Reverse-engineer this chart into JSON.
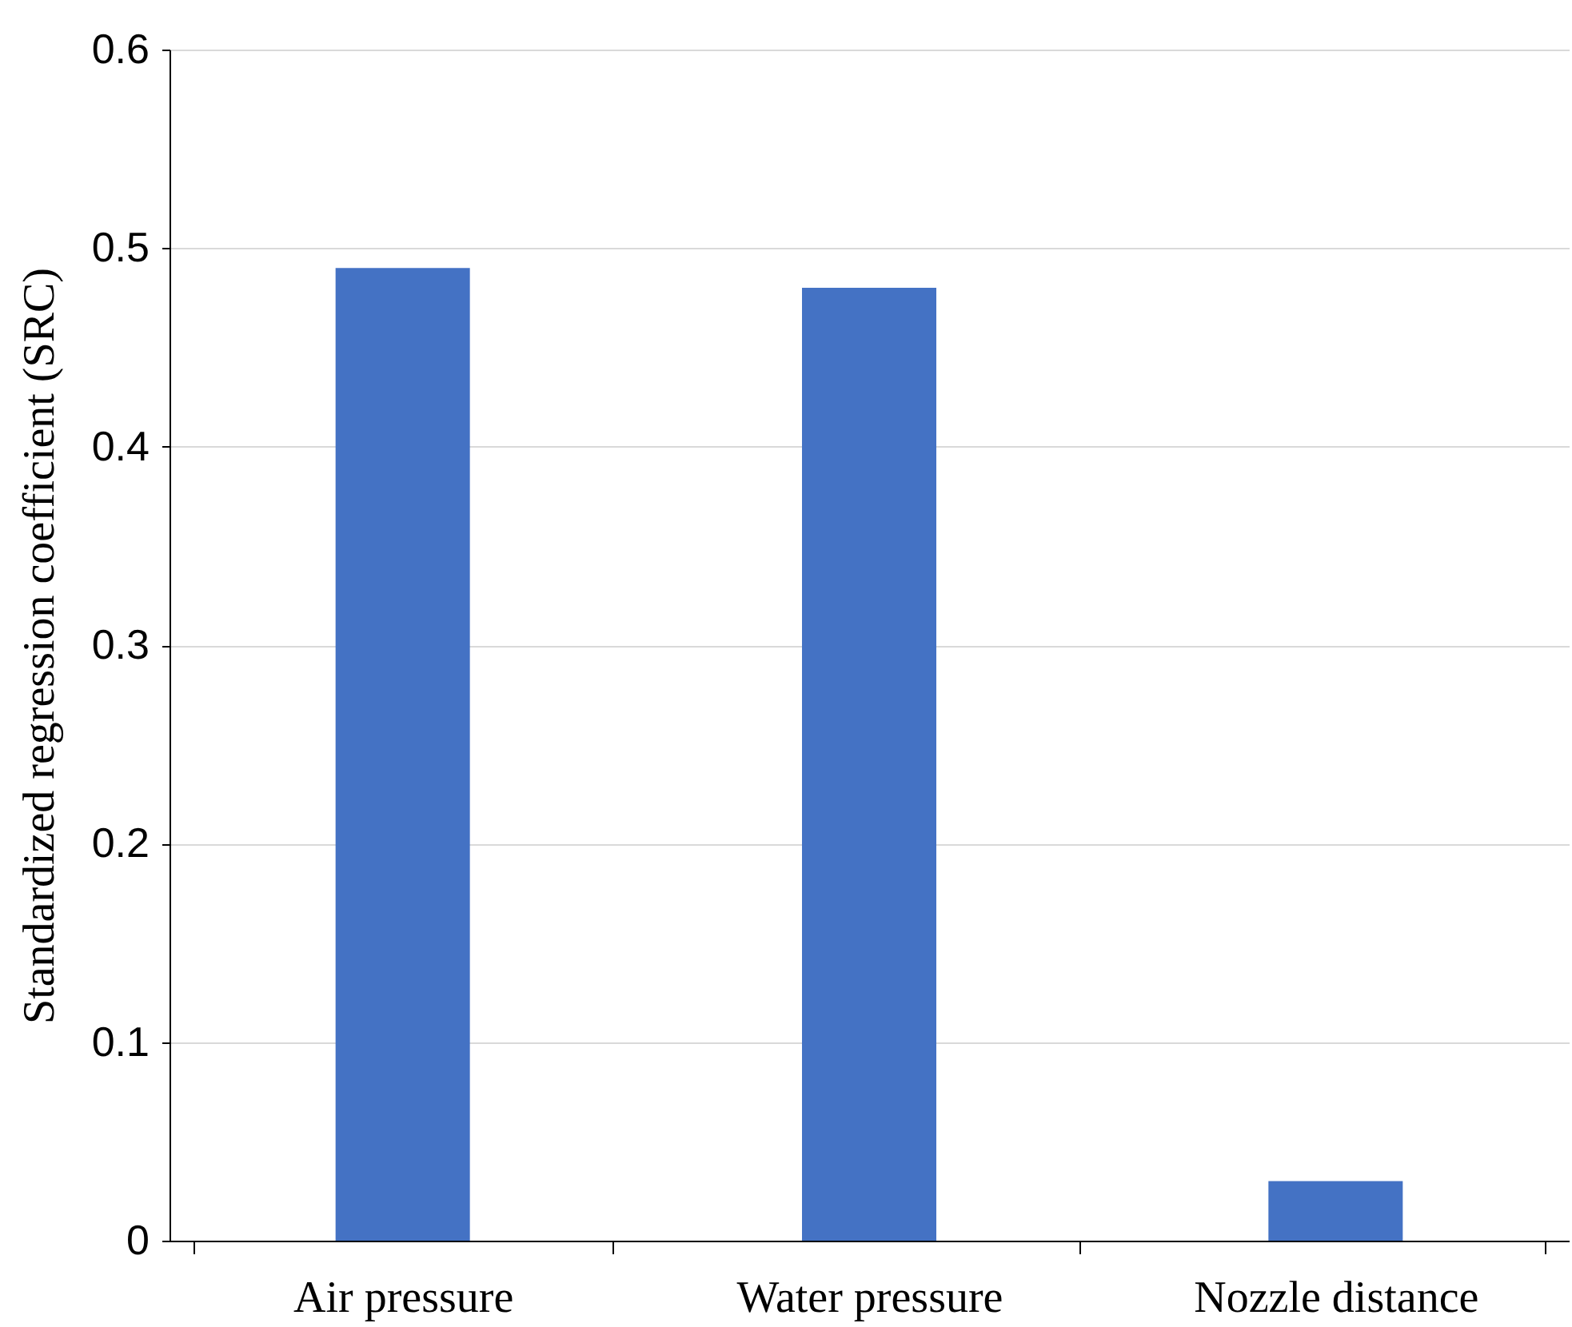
{
  "chart_data": {
    "type": "bar",
    "ylabel": "Standardized regression coefficient (SRC)",
    "categories": [
      "Air pressure",
      "Water pressure",
      "Nozzle distance"
    ],
    "values": [
      0.49,
      0.48,
      0.03
    ],
    "color": "#4472c4",
    "ylim": [
      0,
      0.6
    ],
    "yticks": [
      0,
      0.1,
      0.2,
      0.3,
      0.4,
      0.5,
      0.6
    ],
    "grid": "y"
  }
}
